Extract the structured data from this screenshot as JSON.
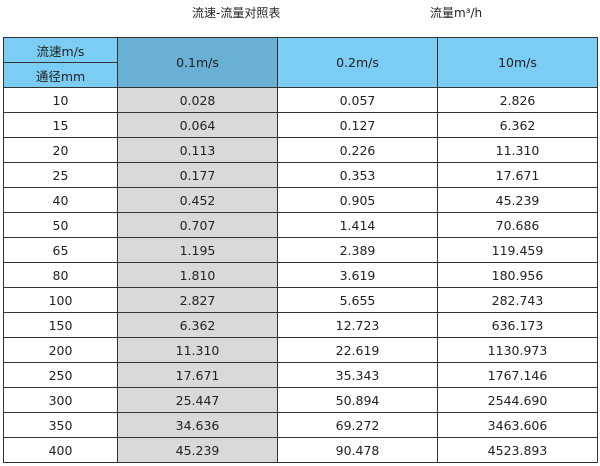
{
  "title": "流速-流量对照表",
  "unit_label": "流量m³/h",
  "header": {
    "velocity_label": "流速m/s",
    "diameter_label": "通径mm",
    "columns": [
      "0.1m/s",
      "0.2m/s",
      "10m/s"
    ]
  },
  "colors": {
    "header": "#7ccdf4",
    "header_highlight": "#6aafd4",
    "column_highlight": "#d9d9d9"
  },
  "rows": [
    [
      "10",
      "0.028",
      "0.057",
      "2.826"
    ],
    [
      "15",
      "0.064",
      "0.127",
      "6.362"
    ],
    [
      "20",
      "0.113",
      "0.226",
      "11.310"
    ],
    [
      "25",
      "0.177",
      "0.353",
      "17.671"
    ],
    [
      "40",
      "0.452",
      "0.905",
      "45.239"
    ],
    [
      "50",
      "0.707",
      "1.414",
      "70.686"
    ],
    [
      "65",
      "1.195",
      "2.389",
      "119.459"
    ],
    [
      "80",
      "1.810",
      "3.619",
      "180.956"
    ],
    [
      "100",
      "2.827",
      "5.655",
      "282.743"
    ],
    [
      "150",
      "6.362",
      "12.723",
      "636.173"
    ],
    [
      "200",
      "11.310",
      "22.619",
      "1130.973"
    ],
    [
      "250",
      "17.671",
      "35.343",
      "1767.146"
    ],
    [
      "300",
      "25.447",
      "50.894",
      "2544.690"
    ],
    [
      "350",
      "34.636",
      "69.272",
      "3463.606"
    ],
    [
      "400",
      "45.239",
      "90.478",
      "4523.893"
    ]
  ]
}
